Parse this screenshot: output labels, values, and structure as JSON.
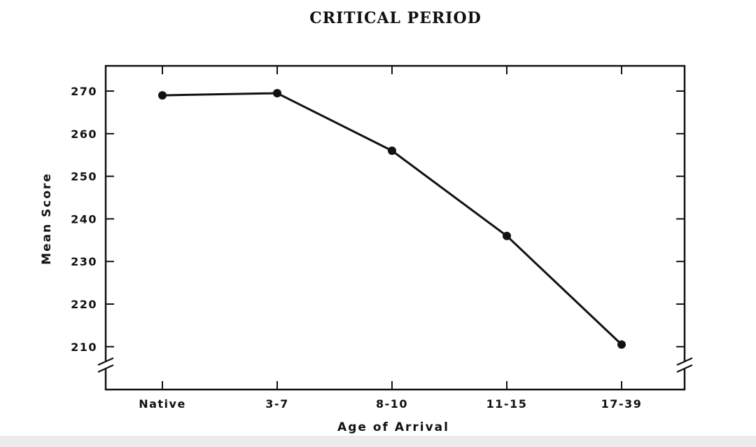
{
  "chart_data": {
    "type": "line",
    "title": "CRITICAL PERIOD",
    "xlabel": "Age of Arrival",
    "ylabel": "Mean Score",
    "categories": [
      "Native",
      "3-7",
      "8-10",
      "11-15",
      "17-39"
    ],
    "series": [
      {
        "name": "Mean Score",
        "values": [
          269,
          269.5,
          256,
          236,
          210.5
        ]
      }
    ],
    "yticks": [
      210,
      220,
      230,
      240,
      250,
      260,
      270
    ],
    "ylim": [
      200,
      276
    ],
    "axis_break": true,
    "grid": false
  }
}
